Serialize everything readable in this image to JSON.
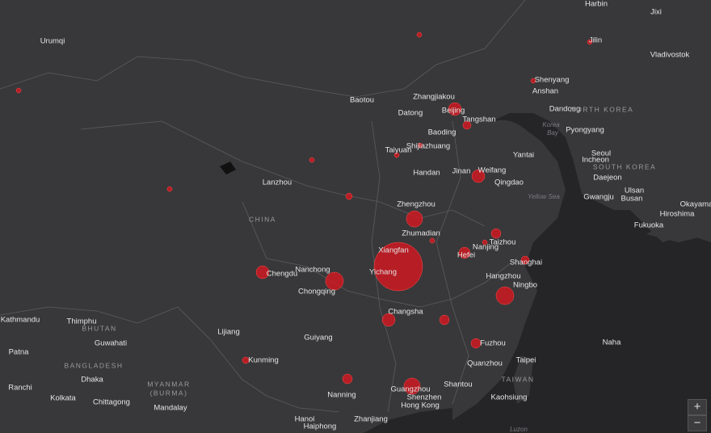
{
  "map": {
    "cities": [
      "Urumqi",
      "Harbin",
      "Jixi",
      "Jilin",
      "Vladivostok",
      "Shenyang",
      "Anshan",
      "Baotou",
      "Zhangjiakou",
      "Beijing",
      "Datong",
      "Dandong",
      "Tangshan",
      "Pyongyang",
      "Baoding",
      "Shijiazhuang",
      "Taiyuan",
      "Yantai",
      "Seoul",
      "Incheon",
      "Handan",
      "Jinan",
      "Weifang",
      "Daejeon",
      "Qingdao",
      "Lanzhou",
      "Gwangju",
      "Ulsan",
      "Busan",
      "Okayama",
      "Zhengzhou",
      "Hiroshima",
      "Zhumadian",
      "Fukuoka",
      "Taizhou",
      "Nanjing",
      "Xiangfan",
      "Hefei",
      "Shanghai",
      "Chengdu",
      "Nanchong",
      "Yichang",
      "Hangzhou",
      "Ningbo",
      "Chongqing",
      "Kathmandu",
      "Thimphu",
      "Changsha",
      "Lijiang",
      "Guiyang",
      "Guwahati",
      "Fuzhou",
      "Naha",
      "Patna",
      "Kunming",
      "Taipei",
      "Quanzhou",
      "Dhaka",
      "Shantou",
      "Ranchi",
      "Guangzhou",
      "Nanning",
      "Kolkata",
      "Shenzhen",
      "Kaohsiung",
      "Chittagong",
      "Hong Kong",
      "Mandalay",
      "Hanoi",
      "Zhanjiang",
      "Haiphong"
    ],
    "regions": [
      "NORTH KOREA",
      "SOUTH KOREA",
      "CHINA",
      "BHUTAN",
      "BANGLADESH",
      "TAIWAN",
      "MYANMAR",
      "(BURMA)"
    ],
    "seas": [
      "Korea",
      "Bay",
      "Yellow Sea",
      "Luzon"
    ]
  },
  "zoom": {
    "in": "+",
    "out": "−"
  }
}
